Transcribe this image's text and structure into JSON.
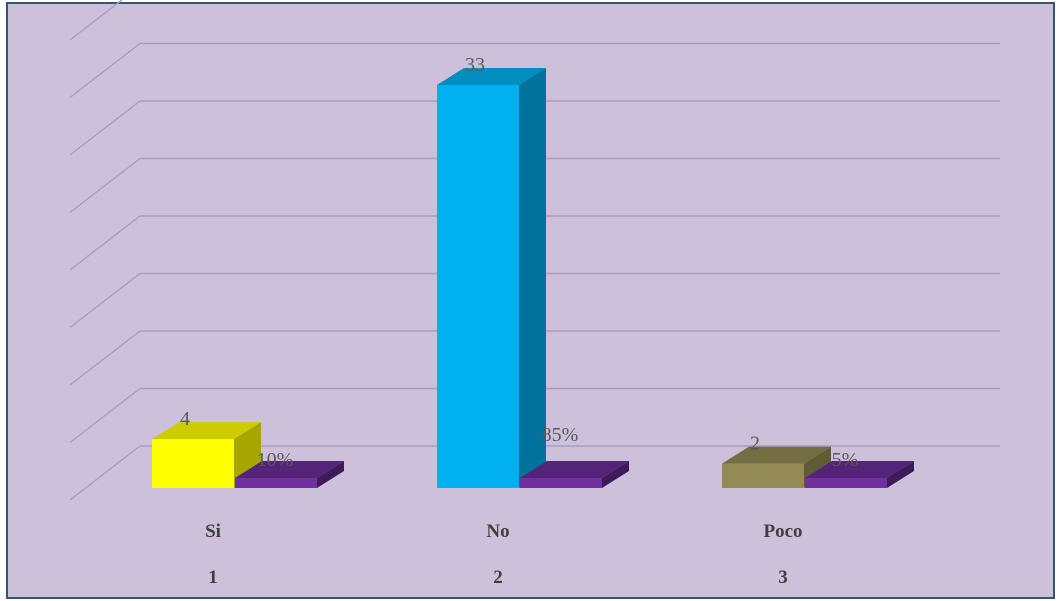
{
  "colors": {
    "background": "#ccc0da",
    "border": "#3b5373",
    "gridline": "#a79cc4",
    "counts": [
      "#ffff00",
      "#00b0f0",
      "#948a54"
    ],
    "percent": "#7030a0"
  },
  "chart_data": {
    "type": "bar",
    "style": "3d-column",
    "title": "",
    "xlabel": "",
    "ylabel": "",
    "grid": true,
    "legend": "none",
    "categories": [
      "Si",
      "No",
      "Poco"
    ],
    "category_numbers": [
      "1",
      "2",
      "3"
    ],
    "series": [
      {
        "values": [
          4,
          33,
          2
        ],
        "labels": [
          "4",
          "33",
          "2"
        ]
      },
      {
        "values": [
          0.1,
          0.85,
          0.05
        ],
        "labels": [
          "10%",
          "85%",
          "5%"
        ]
      }
    ],
    "ylim": [
      0,
      35
    ]
  }
}
